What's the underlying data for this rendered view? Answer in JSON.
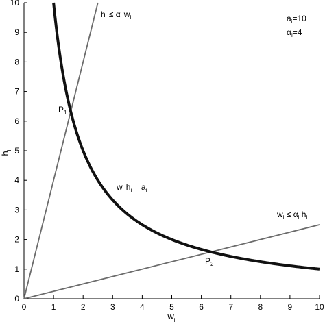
{
  "chart_data": {
    "type": "line",
    "title": "",
    "xlabel": {
      "base": "w",
      "sub": "i"
    },
    "ylabel": {
      "base": "h",
      "sub": "i"
    },
    "xlim": [
      0,
      10
    ],
    "ylim": [
      0,
      10
    ],
    "xticks": [
      0,
      1,
      2,
      3,
      4,
      5,
      6,
      7,
      8,
      9,
      10
    ],
    "yticks": [
      0,
      1,
      2,
      3,
      4,
      5,
      6,
      7,
      8,
      9,
      10
    ],
    "grid": false,
    "parameters": {
      "a": 10,
      "alpha": 4
    },
    "series": [
      {
        "kind": "hyperbola",
        "equation": "w h = a",
        "color": "#111111",
        "x_range": [
          1,
          10
        ]
      },
      {
        "kind": "line",
        "equation": "h = alpha w",
        "color": "#6b6b6b",
        "points": [
          [
            0,
            0
          ],
          [
            2.5,
            10
          ]
        ]
      },
      {
        "kind": "line",
        "equation": "w = alpha h",
        "color": "#6b6b6b",
        "points": [
          [
            0,
            0
          ],
          [
            10,
            2.5
          ]
        ]
      }
    ],
    "points": [
      {
        "base": "P",
        "sub": "1",
        "x": 1.58,
        "y": 6.32
      },
      {
        "base": "P",
        "sub": "2",
        "x": 6.32,
        "y": 1.58
      }
    ],
    "annotations": {
      "params": [
        {
          "base": "a",
          "sub": "i",
          "rest": "=10"
        },
        {
          "base": "α",
          "sub": "i",
          "rest": "=4"
        }
      ],
      "constraint_upper": {
        "p1": "h",
        "s1": "i",
        "op": " ≤ α",
        "s2": "i",
        "p2": " w",
        "s3": "i"
      },
      "constraint_lower": {
        "p1": "w",
        "s1": "i",
        "op": " ≤ α",
        "s2": "i",
        "p2": " h",
        "s3": "i"
      },
      "curve": {
        "p1": "w",
        "s1": "i",
        "p2": " h",
        "s2": "i",
        "eq": " = a",
        "s3": "i"
      }
    }
  }
}
